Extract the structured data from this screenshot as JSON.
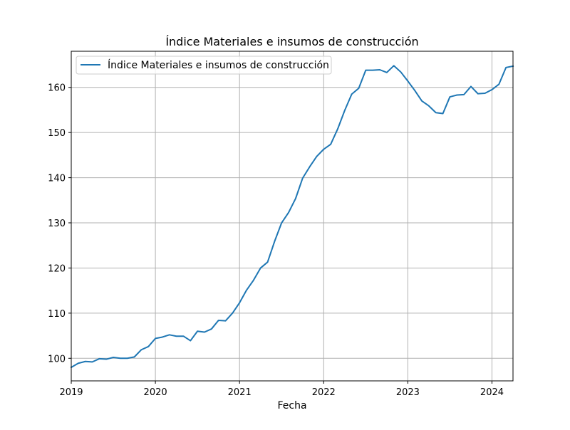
{
  "chart_data": {
    "type": "line",
    "title": "Índice Materiales e insumos de construcción",
    "xlabel": "Fecha",
    "ylabel": "",
    "grid": true,
    "legend_position": "top-left",
    "x_tick_labels": [
      "2019",
      "2020",
      "2021",
      "2022",
      "2023",
      "2024"
    ],
    "y_ticks": [
      100,
      110,
      120,
      130,
      140,
      150,
      160
    ],
    "x_range": [
      "2019-01",
      "2024-04"
    ],
    "ylim": [
      95.0,
      168.0
    ],
    "colors": {
      "series": "#1f77b4",
      "grid": "#b0b0b0"
    },
    "series": [
      {
        "name": "Índice Materiales e insumos de construcción",
        "x": [
          "2019-01",
          "2019-02",
          "2019-03",
          "2019-04",
          "2019-05",
          "2019-06",
          "2019-07",
          "2019-08",
          "2019-09",
          "2019-10",
          "2019-11",
          "2019-12",
          "2020-01",
          "2020-02",
          "2020-03",
          "2020-04",
          "2020-05",
          "2020-06",
          "2020-07",
          "2020-08",
          "2020-09",
          "2020-10",
          "2020-11",
          "2020-12",
          "2021-01",
          "2021-02",
          "2021-03",
          "2021-04",
          "2021-05",
          "2021-06",
          "2021-07",
          "2021-08",
          "2021-09",
          "2021-10",
          "2021-11",
          "2021-12",
          "2022-01",
          "2022-02",
          "2022-03",
          "2022-04",
          "2022-05",
          "2022-06",
          "2022-07",
          "2022-08",
          "2022-09",
          "2022-10",
          "2022-11",
          "2022-12",
          "2023-01",
          "2023-02",
          "2023-03",
          "2023-04",
          "2023-05",
          "2023-06",
          "2023-07",
          "2023-08",
          "2023-09",
          "2023-10",
          "2023-11",
          "2023-12",
          "2024-01",
          "2024-02",
          "2024-03",
          "2024-04"
        ],
        "values": [
          98.0,
          98.9,
          99.3,
          99.2,
          99.9,
          99.8,
          100.2,
          100.0,
          100.0,
          100.3,
          101.9,
          102.6,
          104.4,
          104.7,
          105.2,
          104.9,
          104.9,
          103.9,
          106.0,
          105.8,
          106.5,
          108.4,
          108.3,
          110.0,
          112.3,
          115.1,
          117.3,
          120.0,
          121.3,
          125.9,
          130.0,
          132.3,
          135.4,
          139.9,
          142.4,
          144.7,
          146.3,
          147.4,
          150.8,
          154.9,
          158.5,
          159.8,
          163.8,
          163.8,
          163.9,
          163.3,
          164.8,
          163.4,
          161.4,
          159.3,
          157.0,
          155.9,
          154.4,
          154.2,
          157.9,
          158.3,
          158.4,
          160.2,
          158.6,
          158.7,
          159.5,
          160.7,
          164.4,
          164.7
        ]
      }
    ]
  }
}
